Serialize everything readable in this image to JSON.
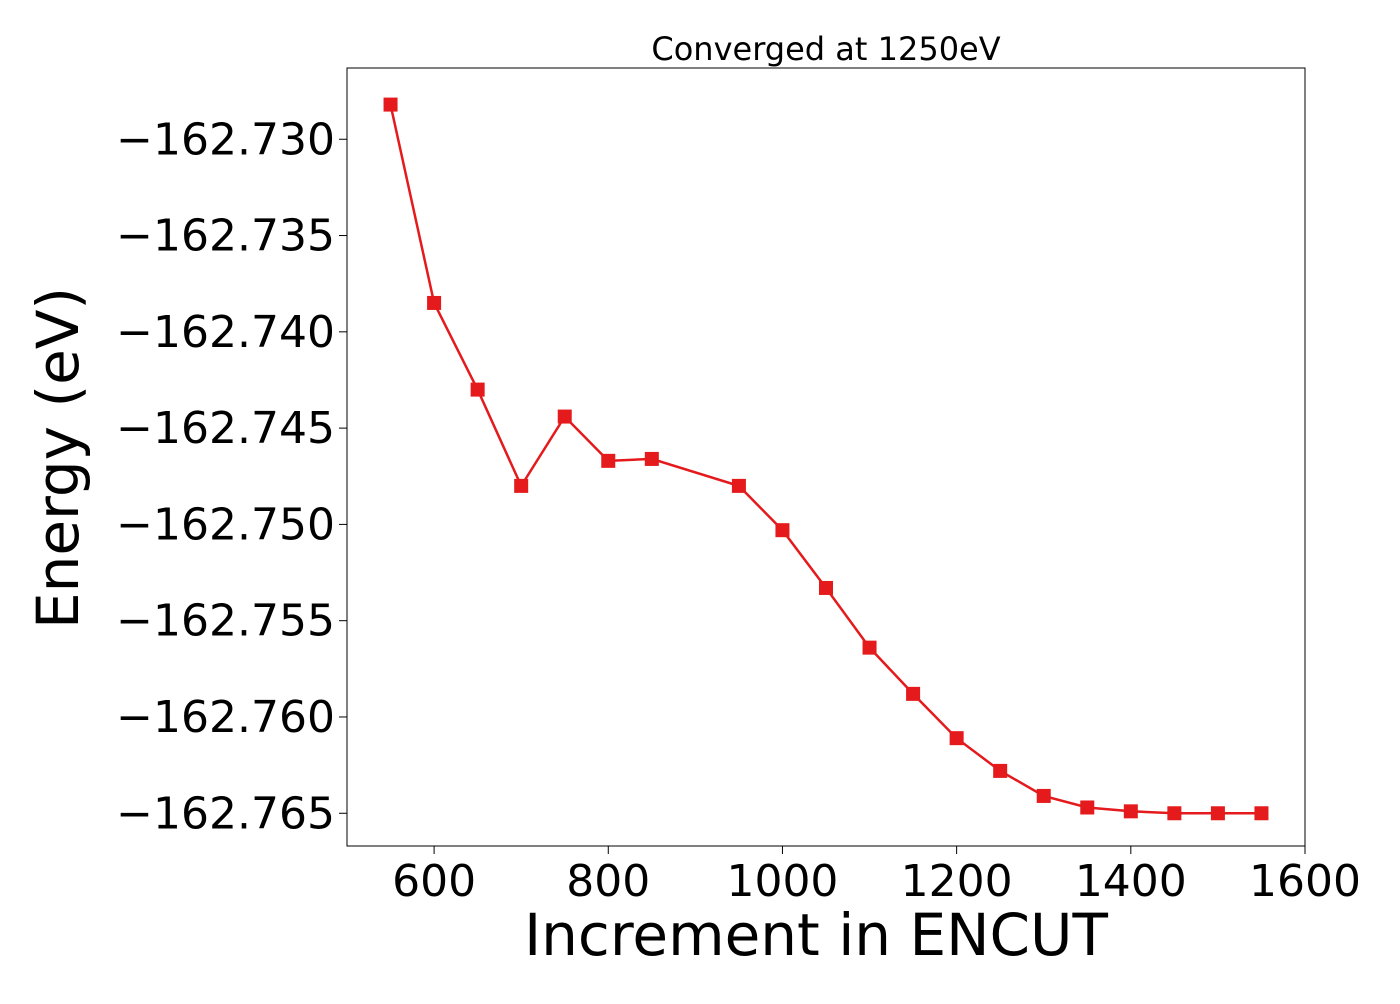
{
  "chart_data": {
    "type": "line",
    "title": "Converged at 1250eV",
    "xlabel": "Increment in ENCUT",
    "ylabel": "Energy (eV)",
    "xlim": [
      500,
      1600
    ],
    "ylim": [
      -162.7667,
      -162.7263
    ],
    "x_ticks": [
      600,
      800,
      1000,
      1200,
      1400,
      1600
    ],
    "x_tick_labels": [
      "600",
      "800",
      "1000",
      "1200",
      "1400",
      "1600"
    ],
    "y_ticks": [
      -162.73,
      -162.735,
      -162.74,
      -162.745,
      -162.75,
      -162.755,
      -162.76,
      -162.765
    ],
    "y_tick_labels": [
      "−162.730",
      "−162.735",
      "−162.740",
      "−162.745",
      "−162.750",
      "−162.755",
      "−162.760",
      "−162.765"
    ],
    "grid": false,
    "series": [
      {
        "color": "#e41a1c",
        "marker": "square",
        "x": [
          550,
          600,
          650,
          700,
          750,
          800,
          850,
          950,
          1000,
          1050,
          1100,
          1150,
          1200,
          1250,
          1300,
          1350,
          1400,
          1450,
          1500,
          1550
        ],
        "y": [
          -162.7282,
          -162.7385,
          -162.743,
          -162.748,
          -162.7444,
          -162.7467,
          -162.7466,
          -162.748,
          -162.7503,
          -162.7533,
          -162.7564,
          -162.7588,
          -162.7611,
          -162.7628,
          -162.7641,
          -162.7647,
          -162.7649,
          -162.765,
          -162.765,
          -162.765
        ]
      }
    ]
  }
}
